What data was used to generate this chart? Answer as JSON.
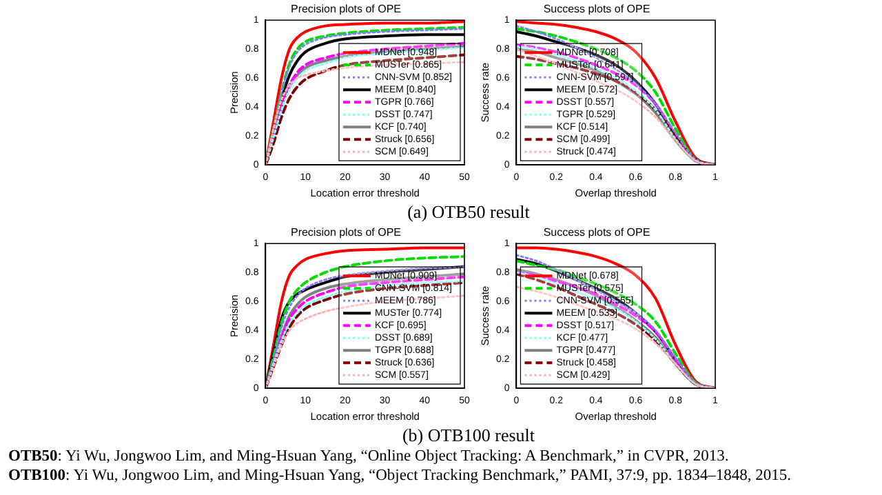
{
  "chart_data": [
    {
      "type": "line",
      "title": "Precision plots of OPE",
      "xlabel": "Location error threshold",
      "ylabel": "Precision",
      "x": [
        0,
        2,
        4,
        6,
        8,
        10,
        15,
        20,
        30,
        40,
        50
      ],
      "xlim": [
        0,
        50
      ],
      "xticks": [
        0,
        10,
        20,
        30,
        40,
        50
      ],
      "ylim": [
        0,
        1
      ],
      "yticks": [
        0,
        0.2,
        0.4,
        0.6,
        0.8,
        1
      ],
      "grid": false,
      "legend": "bottom right",
      "marker": "none",
      "annotations": [
        "(a) OTB50 result"
      ],
      "series": [
        {
          "name": "MDNet [0.948]",
          "color": "#ff0000",
          "line_style": "solid",
          "values": [
            0,
            0.3,
            0.6,
            0.8,
            0.88,
            0.92,
            0.96,
            0.97,
            0.98,
            0.98,
            0.99
          ]
        },
        {
          "name": "MUSTer [0.865]",
          "color": "#00dd00",
          "line_style": "dashed",
          "values": [
            0,
            0.25,
            0.5,
            0.7,
            0.8,
            0.85,
            0.89,
            0.91,
            0.93,
            0.94,
            0.95
          ]
        },
        {
          "name": "CNN-SVM [0.852]",
          "color": "#8080ff",
          "line_style": "dotted",
          "values": [
            0,
            0.25,
            0.5,
            0.68,
            0.78,
            0.83,
            0.88,
            0.9,
            0.92,
            0.93,
            0.94
          ]
        },
        {
          "name": "MEEM [0.840]",
          "color": "#000000",
          "line_style": "solid",
          "values": [
            0,
            0.22,
            0.45,
            0.62,
            0.72,
            0.78,
            0.84,
            0.87,
            0.89,
            0.9,
            0.9
          ]
        },
        {
          "name": "TGPR [0.766]",
          "color": "#ff00ff",
          "line_style": "dashed",
          "values": [
            0,
            0.2,
            0.4,
            0.55,
            0.64,
            0.69,
            0.74,
            0.77,
            0.8,
            0.82,
            0.84
          ]
        },
        {
          "name": "DSST [0.747]",
          "color": "#80ffff",
          "line_style": "dotted",
          "values": [
            0,
            0.19,
            0.38,
            0.52,
            0.6,
            0.65,
            0.7,
            0.74,
            0.77,
            0.79,
            0.81
          ]
        },
        {
          "name": "KCF [0.740]",
          "color": "#808080",
          "line_style": "solid",
          "values": [
            0,
            0.2,
            0.4,
            0.54,
            0.62,
            0.67,
            0.72,
            0.75,
            0.78,
            0.8,
            0.82
          ]
        },
        {
          "name": "Struck [0.656]",
          "color": "#800000",
          "line_style": "dashed",
          "values": [
            0,
            0.15,
            0.33,
            0.46,
            0.54,
            0.59,
            0.65,
            0.69,
            0.72,
            0.74,
            0.76
          ]
        },
        {
          "name": "SCM [0.649]",
          "color": "#ffb0b0",
          "line_style": "dotted",
          "values": [
            0,
            0.25,
            0.45,
            0.55,
            0.6,
            0.62,
            0.65,
            0.67,
            0.69,
            0.7,
            0.71
          ]
        }
      ]
    },
    {
      "type": "line",
      "title": "Success plots of OPE",
      "xlabel": "Overlap threshold",
      "ylabel": "Success rate",
      "x": [
        0,
        0.1,
        0.2,
        0.3,
        0.4,
        0.5,
        0.6,
        0.7,
        0.8,
        0.9,
        1
      ],
      "xlim": [
        0,
        1
      ],
      "xticks": [
        0,
        0.2,
        0.4,
        0.6,
        0.8,
        1
      ],
      "ylim": [
        0,
        1
      ],
      "yticks": [
        0,
        0.2,
        0.4,
        0.6,
        0.8,
        1
      ],
      "grid": false,
      "legend": "bottom left",
      "marker": "none",
      "series": [
        {
          "name": "MDNet [0.708]",
          "color": "#ff0000",
          "line_style": "solid",
          "values": [
            0.99,
            0.98,
            0.97,
            0.95,
            0.92,
            0.87,
            0.78,
            0.6,
            0.3,
            0.05,
            0
          ]
        },
        {
          "name": "MUSTer [0.641]",
          "color": "#00dd00",
          "line_style": "dashed",
          "values": [
            0.94,
            0.92,
            0.89,
            0.85,
            0.8,
            0.74,
            0.65,
            0.5,
            0.25,
            0.04,
            0
          ]
        },
        {
          "name": "CNN-SVM [0.597]",
          "color": "#8080ff",
          "line_style": "dotted",
          "values": [
            0.96,
            0.92,
            0.87,
            0.81,
            0.74,
            0.66,
            0.56,
            0.42,
            0.22,
            0.04,
            0
          ]
        },
        {
          "name": "MEEM [0.572]",
          "color": "#000000",
          "line_style": "solid",
          "values": [
            0.92,
            0.89,
            0.85,
            0.81,
            0.76,
            0.69,
            0.58,
            0.42,
            0.2,
            0.03,
            0
          ]
        },
        {
          "name": "DSST [0.557]",
          "color": "#ff00ff",
          "line_style": "dashed",
          "values": [
            0.83,
            0.81,
            0.78,
            0.74,
            0.69,
            0.63,
            0.55,
            0.42,
            0.21,
            0.03,
            0
          ]
        },
        {
          "name": "TGPR [0.529]",
          "color": "#80ffff",
          "line_style": "dotted",
          "values": [
            0.82,
            0.8,
            0.76,
            0.72,
            0.67,
            0.6,
            0.51,
            0.38,
            0.18,
            0.03,
            0
          ]
        },
        {
          "name": "KCF [0.514]",
          "color": "#808080",
          "line_style": "solid",
          "values": [
            0.8,
            0.78,
            0.74,
            0.7,
            0.65,
            0.58,
            0.49,
            0.36,
            0.17,
            0.03,
            0
          ]
        },
        {
          "name": "SCM [0.499]",
          "color": "#800000",
          "line_style": "dashed",
          "values": [
            0.75,
            0.73,
            0.7,
            0.67,
            0.63,
            0.58,
            0.5,
            0.38,
            0.2,
            0.04,
            0
          ]
        },
        {
          "name": "Struck [0.474]",
          "color": "#ffb0b0",
          "line_style": "dotted",
          "values": [
            0.8,
            0.75,
            0.7,
            0.64,
            0.58,
            0.52,
            0.44,
            0.33,
            0.17,
            0.03,
            0
          ]
        }
      ]
    },
    {
      "type": "line",
      "title": "Precision plots of OPE",
      "xlabel": "Location error threshold",
      "ylabel": "Precision",
      "x": [
        0,
        2,
        4,
        6,
        8,
        10,
        15,
        20,
        30,
        40,
        50
      ],
      "xlim": [
        0,
        50
      ],
      "xticks": [
        0,
        10,
        20,
        30,
        40,
        50
      ],
      "ylim": [
        0,
        1
      ],
      "yticks": [
        0,
        0.2,
        0.4,
        0.6,
        0.8,
        1
      ],
      "grid": false,
      "legend": "bottom right",
      "marker": "none",
      "annotations": [
        "(b) OTB100 result"
      ],
      "series": [
        {
          "name": "MDNet [0.909]",
          "color": "#ff0000",
          "line_style": "solid",
          "values": [
            0,
            0.3,
            0.6,
            0.78,
            0.85,
            0.89,
            0.93,
            0.95,
            0.96,
            0.97,
            0.97
          ]
        },
        {
          "name": "CNN-SVM [0.814]",
          "color": "#00dd00",
          "line_style": "dashed",
          "values": [
            0,
            0.22,
            0.45,
            0.6,
            0.68,
            0.73,
            0.8,
            0.84,
            0.88,
            0.9,
            0.91
          ]
        },
        {
          "name": "MEEM [0.786]",
          "color": "#8080ff",
          "line_style": "dotted",
          "values": [
            0,
            0.2,
            0.42,
            0.56,
            0.64,
            0.69,
            0.75,
            0.78,
            0.81,
            0.83,
            0.84
          ]
        },
        {
          "name": "MUSTer [0.774]",
          "color": "#000000",
          "line_style": "solid",
          "values": [
            0,
            0.25,
            0.48,
            0.6,
            0.65,
            0.68,
            0.73,
            0.77,
            0.8,
            0.82,
            0.84
          ]
        },
        {
          "name": "KCF [0.695]",
          "color": "#ff00ff",
          "line_style": "dashed",
          "values": [
            0,
            0.18,
            0.35,
            0.48,
            0.55,
            0.6,
            0.66,
            0.7,
            0.73,
            0.75,
            0.77
          ]
        },
        {
          "name": "DSST [0.689]",
          "color": "#80ffff",
          "line_style": "dotted",
          "values": [
            0,
            0.17,
            0.33,
            0.45,
            0.52,
            0.57,
            0.63,
            0.67,
            0.71,
            0.73,
            0.74
          ]
        },
        {
          "name": "TGPR [0.688]",
          "color": "#808080",
          "line_style": "solid",
          "values": [
            0,
            0.18,
            0.36,
            0.5,
            0.58,
            0.63,
            0.69,
            0.72,
            0.75,
            0.77,
            0.79
          ]
        },
        {
          "name": "Struck [0.636]",
          "color": "#800000",
          "line_style": "dashed",
          "values": [
            0,
            0.15,
            0.3,
            0.42,
            0.5,
            0.55,
            0.61,
            0.65,
            0.69,
            0.71,
            0.73
          ]
        },
        {
          "name": "SCM [0.557]",
          "color": "#ffb0b0",
          "line_style": "dotted",
          "values": [
            0,
            0.15,
            0.3,
            0.4,
            0.45,
            0.48,
            0.53,
            0.56,
            0.6,
            0.62,
            0.64
          ]
        }
      ]
    },
    {
      "type": "line",
      "title": "Success plots of OPE",
      "xlabel": "Overlap threshold",
      "ylabel": "Success rate",
      "x": [
        0,
        0.1,
        0.2,
        0.3,
        0.4,
        0.5,
        0.6,
        0.7,
        0.8,
        0.9,
        1
      ],
      "xlim": [
        0,
        1
      ],
      "xticks": [
        0,
        0.2,
        0.4,
        0.6,
        0.8,
        1
      ],
      "ylim": [
        0,
        1
      ],
      "yticks": [
        0,
        0.2,
        0.4,
        0.6,
        0.8,
        1
      ],
      "grid": false,
      "legend": "bottom left",
      "marker": "none",
      "annotations": [
        "OTB50: Yi Wu, Jongwoo Lim, and Ming-Hsuan Yang, “Online Object Tracking: A Benchmark,” in CVPR, 2013.",
        "OTB100: Yi Wu, Jongwoo Lim, and Ming-Hsuan Yang, “Object Tracking Benchmark,” PAMI, 37:9, pp. 1834–1848, 2015."
      ],
      "series": [
        {
          "name": "MDNet [0.678]",
          "color": "#ff0000",
          "line_style": "solid",
          "values": [
            0.97,
            0.97,
            0.96,
            0.94,
            0.91,
            0.86,
            0.78,
            0.62,
            0.3,
            0.05,
            0
          ]
        },
        {
          "name": "MUSTer [0.575]",
          "color": "#00dd00",
          "line_style": "dashed",
          "values": [
            0.88,
            0.85,
            0.82,
            0.77,
            0.72,
            0.66,
            0.58,
            0.46,
            0.24,
            0.04,
            0
          ]
        },
        {
          "name": "CNN-SVM [0.555]",
          "color": "#8080ff",
          "line_style": "dotted",
          "values": [
            0.92,
            0.88,
            0.82,
            0.75,
            0.68,
            0.6,
            0.52,
            0.4,
            0.21,
            0.04,
            0
          ]
        },
        {
          "name": "MEEM [0.533]",
          "color": "#000000",
          "line_style": "solid",
          "values": [
            0.89,
            0.86,
            0.81,
            0.75,
            0.69,
            0.62,
            0.52,
            0.39,
            0.2,
            0.03,
            0
          ]
        },
        {
          "name": "DSST [0.517]",
          "color": "#ff00ff",
          "line_style": "dashed",
          "values": [
            0.8,
            0.78,
            0.74,
            0.7,
            0.65,
            0.58,
            0.5,
            0.39,
            0.2,
            0.03,
            0
          ]
        },
        {
          "name": "KCF [0.477]",
          "color": "#80ffff",
          "line_style": "dotted",
          "values": [
            0.8,
            0.77,
            0.72,
            0.67,
            0.61,
            0.55,
            0.46,
            0.34,
            0.17,
            0.03,
            0
          ]
        },
        {
          "name": "TGPR [0.477]",
          "color": "#808080",
          "line_style": "solid",
          "values": [
            0.82,
            0.79,
            0.75,
            0.7,
            0.64,
            0.56,
            0.47,
            0.35,
            0.17,
            0.03,
            0
          ]
        },
        {
          "name": "Struck [0.458]",
          "color": "#800000",
          "line_style": "dashed",
          "values": [
            0.79,
            0.75,
            0.7,
            0.64,
            0.58,
            0.52,
            0.44,
            0.33,
            0.17,
            0.03,
            0
          ]
        },
        {
          "name": "SCM [0.429]",
          "color": "#ffb0b0",
          "line_style": "dotted",
          "values": [
            0.7,
            0.67,
            0.63,
            0.58,
            0.53,
            0.48,
            0.41,
            0.31,
            0.17,
            0.03,
            0
          ]
        }
      ]
    }
  ]
}
